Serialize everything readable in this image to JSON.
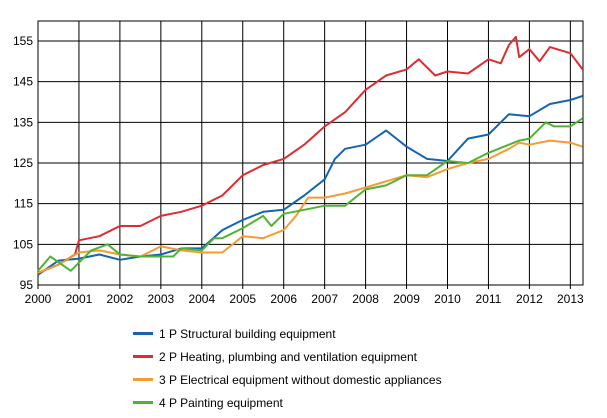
{
  "chart_data": {
    "type": "line",
    "title": "",
    "xlabel": "",
    "ylabel": "",
    "xlim": [
      2000,
      2013.3
    ],
    "ylim": [
      95,
      160
    ],
    "grid": true,
    "legend_placement": "bottom",
    "x_ticks": [
      "2000",
      "2001",
      "2002",
      "2003",
      "2004",
      "2005",
      "2006",
      "2007",
      "2008",
      "2009",
      "2010",
      "2011",
      "2012",
      "2013"
    ],
    "y_ticks": [
      "95",
      "105",
      "115",
      "125",
      "135",
      "145",
      "155"
    ],
    "series": [
      {
        "name": "1 P Structural building equipment",
        "color": "#1464b4",
        "points": [
          [
            2000,
            97.5
          ],
          [
            2000.5,
            101
          ],
          [
            2001,
            101.5
          ],
          [
            2001.5,
            102.5
          ],
          [
            2002,
            101.2
          ],
          [
            2002.5,
            102
          ],
          [
            2003,
            102.5
          ],
          [
            2003.5,
            104
          ],
          [
            2004,
            104
          ],
          [
            2004.5,
            108.5
          ],
          [
            2005,
            111
          ],
          [
            2005.5,
            113
          ],
          [
            2006,
            113.5
          ],
          [
            2006.5,
            117
          ],
          [
            2007,
            121
          ],
          [
            2007.25,
            126
          ],
          [
            2007.5,
            128.5
          ],
          [
            2008,
            129.5
          ],
          [
            2008.5,
            133
          ],
          [
            2009,
            129
          ],
          [
            2009.5,
            126
          ],
          [
            2010,
            125.5
          ],
          [
            2010.5,
            131
          ],
          [
            2011,
            132
          ],
          [
            2011.5,
            137
          ],
          [
            2012,
            136.5
          ],
          [
            2012.5,
            139.5
          ],
          [
            2013,
            140.5
          ],
          [
            2013.3,
            141.5
          ]
        ]
      },
      {
        "name": "2 P Heating, plumbing and ventilation equipment",
        "color": "#dc2d32",
        "points": [
          [
            2000,
            98
          ],
          [
            2000.5,
            100
          ],
          [
            2000.9,
            102.5
          ],
          [
            2001,
            106
          ],
          [
            2001.5,
            107
          ],
          [
            2002,
            109.5
          ],
          [
            2002.5,
            109.5
          ],
          [
            2003,
            112
          ],
          [
            2003.5,
            113
          ],
          [
            2004,
            114.5
          ],
          [
            2004.5,
            117
          ],
          [
            2005,
            122
          ],
          [
            2005.5,
            124.5
          ],
          [
            2006,
            126
          ],
          [
            2006.5,
            129.5
          ],
          [
            2007,
            134
          ],
          [
            2007.5,
            137.5
          ],
          [
            2008,
            143
          ],
          [
            2008.5,
            146.5
          ],
          [
            2009,
            148
          ],
          [
            2009.3,
            150.5
          ],
          [
            2009.7,
            146.5
          ],
          [
            2010,
            147.5
          ],
          [
            2010.5,
            147
          ],
          [
            2011,
            150.5
          ],
          [
            2011.3,
            149.5
          ],
          [
            2011.5,
            154
          ],
          [
            2011.67,
            156
          ],
          [
            2011.75,
            151
          ],
          [
            2012,
            153
          ],
          [
            2012.25,
            150
          ],
          [
            2012.5,
            153.5
          ],
          [
            2013,
            152
          ],
          [
            2013.3,
            148
          ]
        ]
      },
      {
        "name": "3 P Electrical equipment without domestic appliances",
        "color": "#f59b32",
        "points": [
          [
            2000,
            98
          ],
          [
            2000.5,
            100
          ],
          [
            2001,
            103
          ],
          [
            2001.5,
            103.5
          ],
          [
            2002,
            102.5
          ],
          [
            2002.5,
            102
          ],
          [
            2003,
            104.5
          ],
          [
            2003.5,
            103.5
          ],
          [
            2004,
            103
          ],
          [
            2004.5,
            103
          ],
          [
            2005,
            107
          ],
          [
            2005.5,
            106.5
          ],
          [
            2006,
            108.5
          ],
          [
            2006.3,
            112
          ],
          [
            2006.6,
            116.5
          ],
          [
            2007,
            116.5
          ],
          [
            2007.5,
            117.5
          ],
          [
            2008,
            119
          ],
          [
            2008.5,
            120.5
          ],
          [
            2009,
            122
          ],
          [
            2009.5,
            121.5
          ],
          [
            2010,
            123.5
          ],
          [
            2010.5,
            125
          ],
          [
            2011,
            126
          ],
          [
            2011.5,
            128.5
          ],
          [
            2011.75,
            130
          ],
          [
            2012,
            129.5
          ],
          [
            2012.5,
            130.5
          ],
          [
            2013,
            130
          ],
          [
            2013.3,
            129
          ]
        ]
      },
      {
        "name": "4 P Painting equipment",
        "color": "#50b432",
        "points": [
          [
            2000,
            98.5
          ],
          [
            2000.3,
            102
          ],
          [
            2000.8,
            98.5
          ],
          [
            2001,
            100.5
          ],
          [
            2001.3,
            103.5
          ],
          [
            2001.7,
            105
          ],
          [
            2002,
            102.5
          ],
          [
            2002.5,
            102
          ],
          [
            2003,
            102
          ],
          [
            2003.3,
            102
          ],
          [
            2003.5,
            104
          ],
          [
            2004,
            103.5
          ],
          [
            2004.3,
            106.5
          ],
          [
            2004.5,
            106.5
          ],
          [
            2005,
            109
          ],
          [
            2005.5,
            112
          ],
          [
            2005.7,
            109.5
          ],
          [
            2006,
            112.5
          ],
          [
            2006.5,
            113.5
          ],
          [
            2007,
            114.5
          ],
          [
            2007.5,
            114.5
          ],
          [
            2008,
            118.5
          ],
          [
            2008.5,
            119.5
          ],
          [
            2009,
            122
          ],
          [
            2009.5,
            122
          ],
          [
            2010,
            125.5
          ],
          [
            2010.5,
            125
          ],
          [
            2011,
            127.5
          ],
          [
            2011.5,
            129.5
          ],
          [
            2011.75,
            130.5
          ],
          [
            2012,
            131
          ],
          [
            2012.4,
            135
          ],
          [
            2012.6,
            134
          ],
          [
            2013,
            134
          ],
          [
            2013.3,
            136
          ]
        ]
      }
    ]
  }
}
